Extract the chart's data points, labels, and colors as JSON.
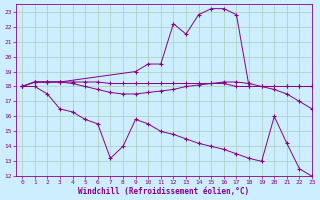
{
  "xlabel": "Windchill (Refroidissement éolien,°C)",
  "background_color": "#cceeff",
  "grid_color": "#aaccbb",
  "line_color": "#880088",
  "xlim": [
    -0.5,
    23
  ],
  "ylim": [
    12,
    23.5
  ],
  "yticks": [
    12,
    13,
    14,
    15,
    16,
    17,
    18,
    19,
    20,
    21,
    22,
    23
  ],
  "xticks": [
    0,
    1,
    2,
    3,
    4,
    5,
    6,
    7,
    8,
    9,
    10,
    11,
    12,
    13,
    14,
    15,
    16,
    17,
    18,
    19,
    20,
    21,
    22,
    23
  ],
  "line_flat_x": [
    0,
    1,
    2,
    3,
    4,
    5,
    6,
    7,
    8,
    9,
    10,
    11,
    12,
    13,
    14,
    15,
    16,
    17,
    18,
    19,
    20,
    21,
    22,
    23
  ],
  "line_flat_y": [
    18.0,
    18.3,
    18.3,
    18.3,
    18.3,
    18.3,
    18.3,
    18.2,
    18.2,
    18.2,
    18.2,
    18.2,
    18.2,
    18.2,
    18.2,
    18.2,
    18.2,
    18.0,
    18.0,
    18.0,
    18.0,
    18.0,
    18.0,
    18.0
  ],
  "line_med_x": [
    0,
    1,
    2,
    3,
    4,
    5,
    6,
    7,
    8,
    9,
    10,
    11,
    12,
    13,
    14,
    15,
    16,
    17,
    18,
    19,
    20,
    21,
    22,
    23
  ],
  "line_med_y": [
    18.0,
    18.3,
    18.3,
    18.3,
    18.2,
    18.0,
    17.8,
    17.6,
    17.5,
    17.5,
    17.6,
    17.7,
    17.8,
    18.0,
    18.1,
    18.2,
    18.3,
    18.3,
    18.2,
    18.0,
    17.8,
    17.5,
    17.0,
    16.5
  ],
  "line_high_x": [
    0,
    1,
    2,
    3,
    9,
    10,
    11,
    12,
    13,
    14,
    15,
    16,
    17,
    18,
    21,
    22,
    23
  ],
  "line_high_y": [
    18.0,
    18.3,
    18.3,
    18.3,
    19.0,
    19.5,
    19.5,
    22.2,
    21.5,
    22.8,
    23.2,
    23.2,
    22.8,
    18.0,
    18.0,
    18.0,
    18.0
  ],
  "line_low_x": [
    0,
    1,
    2,
    3,
    4,
    5,
    6,
    7,
    8,
    9,
    10,
    11,
    12,
    13,
    14,
    15,
    16,
    17,
    18,
    19,
    20,
    21,
    22,
    23
  ],
  "line_low_y": [
    18.0,
    18.0,
    17.5,
    16.5,
    16.3,
    15.8,
    15.5,
    13.2,
    14.0,
    15.8,
    15.5,
    15.0,
    14.8,
    14.5,
    14.2,
    14.0,
    13.8,
    13.5,
    13.2,
    13.0,
    16.0,
    14.2,
    12.5,
    12.0
  ]
}
